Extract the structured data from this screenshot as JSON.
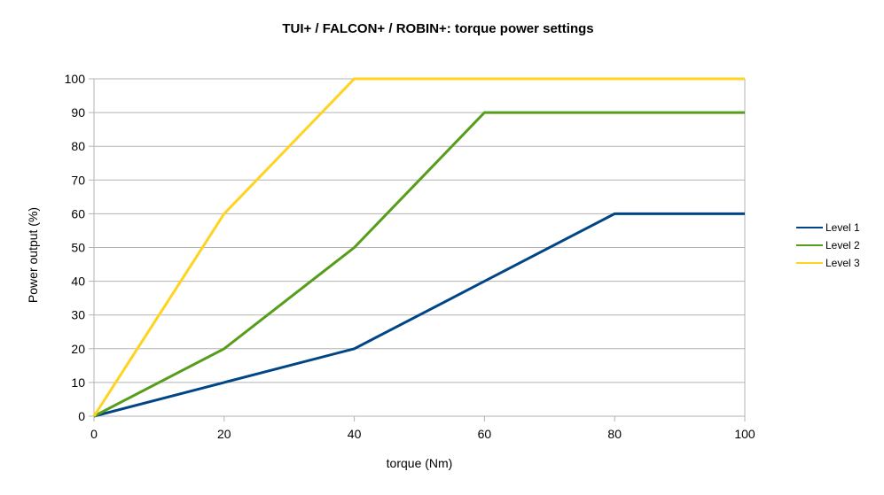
{
  "chart_data": {
    "type": "line",
    "title": "TUI+ / FALCON+ / ROBIN+: torque power settings",
    "xlabel": "torque (Nm)",
    "ylabel": "Power output (%)",
    "xlim": [
      0,
      100
    ],
    "ylim": [
      0,
      100
    ],
    "x_ticks": [
      0,
      20,
      40,
      60,
      80,
      100
    ],
    "y_ticks": [
      0,
      10,
      20,
      30,
      40,
      50,
      60,
      70,
      80,
      90,
      100
    ],
    "grid": true,
    "legend_position": "right",
    "series": [
      {
        "name": "Level 1",
        "color": "#004586",
        "points": [
          [
            0,
            0
          ],
          [
            20,
            10
          ],
          [
            40,
            20
          ],
          [
            60,
            40
          ],
          [
            80,
            60
          ],
          [
            100,
            60
          ]
        ]
      },
      {
        "name": "Level 2",
        "color": "#579d1c",
        "points": [
          [
            0,
            0
          ],
          [
            20,
            20
          ],
          [
            40,
            50
          ],
          [
            60,
            90
          ],
          [
            80,
            90
          ],
          [
            100,
            90
          ]
        ]
      },
      {
        "name": "Level 3",
        "color": "#ffd320",
        "points": [
          [
            0,
            0
          ],
          [
            20,
            60
          ],
          [
            40,
            100
          ],
          [
            60,
            100
          ],
          [
            80,
            100
          ],
          [
            100,
            100
          ]
        ]
      }
    ]
  }
}
